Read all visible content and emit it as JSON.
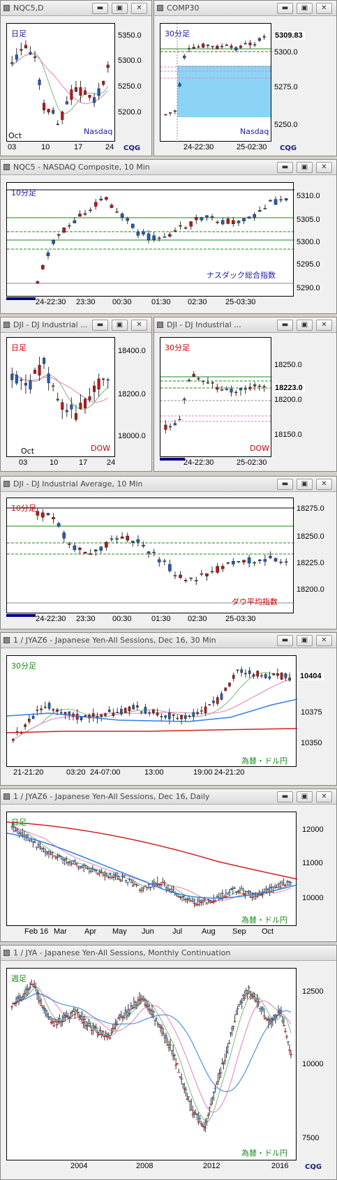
{
  "colors": {
    "up": "#1f5fbf",
    "down": "#cc1111",
    "ma_green": "#7ab87a",
    "ma_pink": "#e37fbf",
    "ma_blue": "#2f7fdf",
    "ma_red": "#d02020",
    "band": "#7fcff5"
  },
  "panels": [
    {
      "id": "p1",
      "title": "NQC5,D",
      "tf": "日足",
      "label": "Nasdaq",
      "yticks": [
        "5350.0",
        "5300.0",
        "5250.0",
        "5200.0"
      ],
      "xticks": [
        "03",
        "10",
        "17",
        "24"
      ],
      "month": "Oct",
      "brand": "CQG"
    },
    {
      "id": "p2",
      "title": "COMP30",
      "tf": "30分足",
      "label": "Nasdaq",
      "yticks": [
        "5300.0",
        "5275.0",
        "5250.0"
      ],
      "xticks": [
        "24-22:30",
        "25-02:30"
      ],
      "price": "5309.83",
      "brand": "CQG"
    },
    {
      "id": "p3",
      "title": "NQC5 - NASDAQ Composite, 10 Min",
      "tf": "10分足",
      "label": "ナスダック総合指数",
      "yticks": [
        "5310.0",
        "5305.0",
        "5300.0",
        "5295.0",
        "5290.0"
      ],
      "xticks": [
        "24-22:30",
        "23:30",
        "00:30",
        "01:30",
        "02:30",
        "25-03:30"
      ]
    },
    {
      "id": "p4",
      "title": "DJI - DJ Industrial ...",
      "tf": "日足",
      "label": "DOW",
      "yticks": [
        "18400.0",
        "18200.0",
        "18000.0"
      ],
      "xticks": [
        "03",
        "10",
        "17",
        "24"
      ],
      "month": "Oct"
    },
    {
      "id": "p5",
      "title": "DJI - DJ Industrial ...",
      "tf": "30分足",
      "label": "DOW",
      "yticks": [
        "18250.0",
        "18200.0",
        "18150.0"
      ],
      "xticks": [
        "24-22:30",
        "25-02:30"
      ],
      "price": "18223.0"
    },
    {
      "id": "p6",
      "title": "DJI - DJ Industrial Average, 10 Min",
      "tf": "10分足",
      "label": "ダウ平均指数",
      "yticks": [
        "18275.0",
        "18250.0",
        "18225.0",
        "18200.0"
      ],
      "xticks": [
        "24-22:30",
        "23:30",
        "00:30",
        "01:30",
        "02:30",
        "25-03:30"
      ]
    },
    {
      "id": "p7",
      "title": "1 / JYAZ6 - Japanese Yen-All Sessions, Dec 16, 30 Min",
      "tf": "30分足",
      "label": "為替・ドル円",
      "yticks": [
        "10375",
        "10350"
      ],
      "xticks": [
        "21-21:20",
        "03:20",
        "24-07:00",
        "13:00",
        "19:00",
        "24-21:20"
      ],
      "price": "10404"
    },
    {
      "id": "p8",
      "title": "1 / JYAZ6 - Japanese Yen-All Sessions, Dec 16, Daily",
      "tf": "日足",
      "label": "為替・ドル円",
      "yticks": [
        "12000",
        "11000",
        "10000"
      ],
      "xticks": [
        "Feb 16",
        "Mar",
        "Apr",
        "May",
        "Jun",
        "Jul",
        "Aug",
        "Sep",
        "Oct"
      ]
    },
    {
      "id": "p9",
      "title": "1 / JYA - Japanese Yen-All Sessions, Monthly Continuation",
      "tf": "週足",
      "label": "為替・ドル円",
      "yticks": [
        "12500",
        "10000",
        "7500"
      ],
      "xticks": [
        "2004",
        "2008",
        "2012",
        "2016"
      ],
      "brand": "CQG"
    }
  ],
  "buttons": {
    "min": "▬",
    "max": "▣",
    "close": "✕"
  }
}
